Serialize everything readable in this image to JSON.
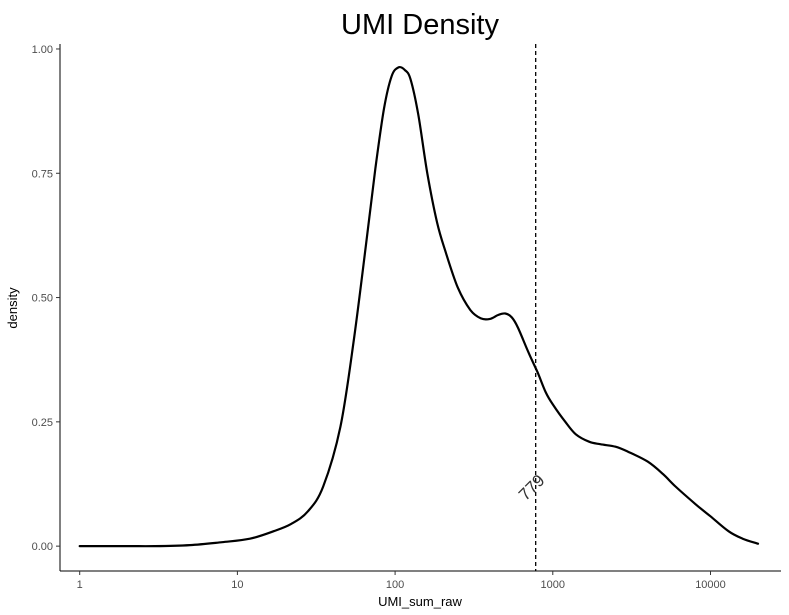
{
  "chart_data": {
    "type": "line",
    "title": "UMI Density",
    "xlabel": "UMI_sum_raw",
    "ylabel": "density",
    "x_scale": "log10",
    "xlim": [
      0.75,
      28000
    ],
    "ylim": [
      -0.05,
      1.01
    ],
    "x_ticks": [
      1,
      10,
      100,
      1000,
      10000
    ],
    "x_tick_labels": [
      "1",
      "10",
      "100",
      "1000",
      "10000"
    ],
    "y_ticks": [
      0,
      0.25,
      0.5,
      0.75,
      1
    ],
    "y_tick_labels": [
      "0.00",
      "0.25",
      "0.50",
      "0.75",
      "1.00"
    ],
    "grid": false,
    "legend": "none",
    "series": [
      {
        "color": "#000000",
        "x": [
          1,
          2,
          3,
          5,
          8,
          12,
          17,
          22,
          28,
          35,
          45,
          55,
          65,
          75,
          85,
          95,
          105,
          115,
          125,
          140,
          160,
          185,
          210,
          250,
          300,
          350,
          400,
          450,
          500,
          550,
          600,
          700,
          800,
          900,
          1000,
          1200,
          1400,
          1700,
          2000,
          2500,
          3000,
          4000,
          5000,
          6000,
          8000,
          10000,
          13000,
          16000,
          20000
        ],
        "y": [
          0.0,
          0.0,
          0.0,
          0.002,
          0.008,
          0.015,
          0.03,
          0.045,
          0.07,
          0.12,
          0.24,
          0.42,
          0.6,
          0.76,
          0.88,
          0.945,
          0.963,
          0.958,
          0.94,
          0.87,
          0.75,
          0.65,
          0.59,
          0.52,
          0.475,
          0.458,
          0.457,
          0.465,
          0.468,
          0.46,
          0.44,
          0.39,
          0.35,
          0.31,
          0.285,
          0.25,
          0.225,
          0.21,
          0.205,
          0.2,
          0.19,
          0.17,
          0.145,
          0.12,
          0.085,
          0.06,
          0.03,
          0.015,
          0.005
        ]
      }
    ],
    "vline": {
      "x": 779,
      "style": "dashed",
      "color": "#000000"
    },
    "annotations": [
      {
        "text": "779",
        "x": 779,
        "y": 0.11,
        "rotation": -45
      }
    ]
  }
}
